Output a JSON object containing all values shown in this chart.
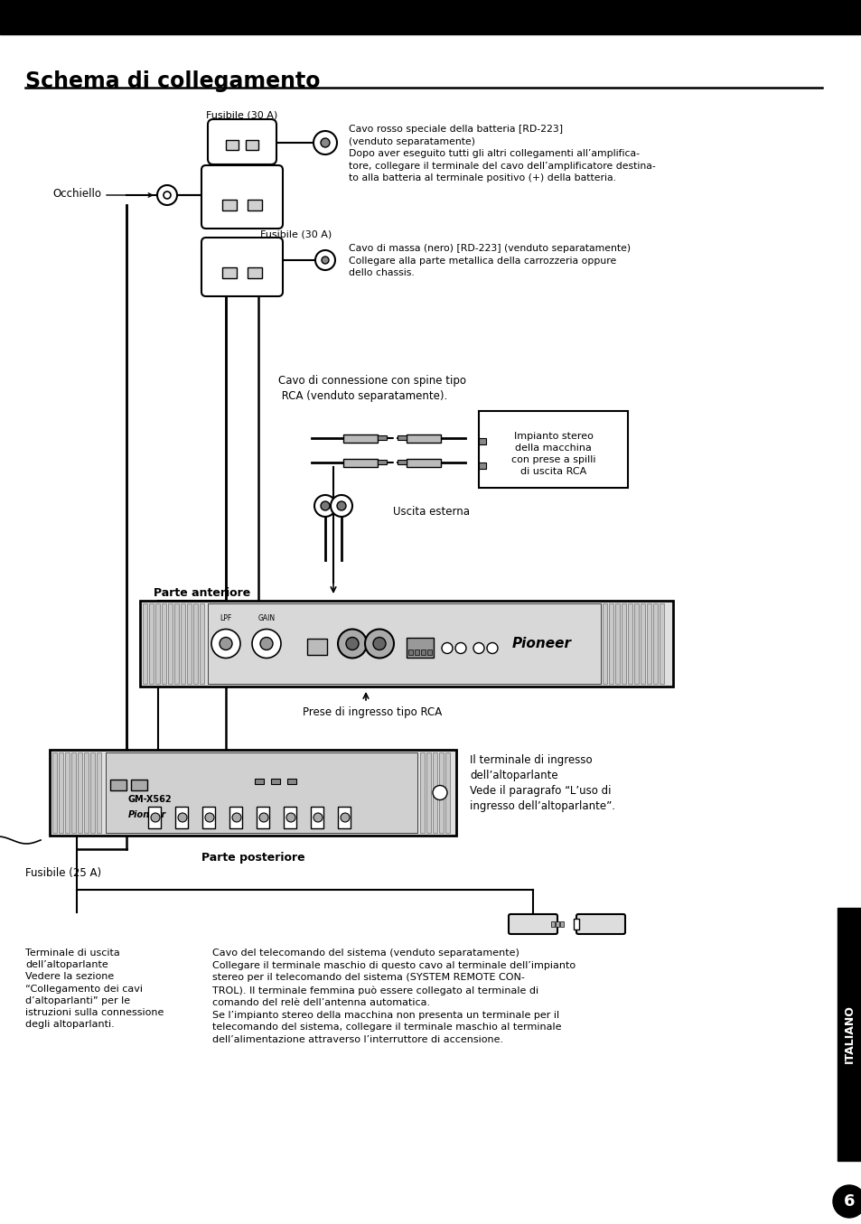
{
  "title": "Schema di collegamento",
  "bg_color": "#ffffff",
  "header_bar_color": "#000000",
  "page_number": "6",
  "sidebar_label": "ITALIANO",
  "annotations": {
    "fusibile_30a_top": "Fusibile (30 A)",
    "occhiello": "Occhiello",
    "fusibile_30a_bottom": "Fusibile (30 A)",
    "cavo_rosso": "Cavo rosso speciale della batteria [RD-223]\n(venduto separatamente)\nDopo aver eseguito tutti gli altri collegamenti all’amplifica-\ntore, collegare il terminale del cavo dell’amplificatore destina-\nto alla batteria al terminale positivo (+) della batteria.",
    "cavo_massa": "Cavo di massa (nero) [RD-223] (venduto separatamente)\nCollegare alla parte metallica della carrozzeria oppure\ndello chassis.",
    "cavo_rca": "Cavo di connessione con spine tipo\n RCA (venduto separatamente).",
    "impianto_stereo": "Impianto stereo\ndella macchina\ncon prese a spilli\ndi uscita RCA",
    "uscita_esterna": "Uscita esterna",
    "parte_anteriore": "Parte anteriore",
    "prese_rca": "Prese di ingresso tipo RCA",
    "terminale_ingresso": "Il terminale di ingresso\ndell’altoparlante\nVede il paragrafo “L’uso di\ningresso dell’altoparlante”.",
    "parte_posteriore": "Parte posteriore",
    "fusibile_25a": "Fusibile (25 A)",
    "terminale_uscita": "Terminale di uscita\ndell’altoparlante\nVedere la sezione\n“Collegamento dei cavi\nd’altoparlanti” per le\nistruzioni sulla connessione\ndegli altoparlanti.",
    "cavo_telecomando": "Cavo del telecomando del sistema (venduto separatamente)\nCollegare il terminale maschio di questo cavo al terminale dell’impianto\nstereo per il telecomando del sistema (SYSTEM REMOTE CON-\nTROL). Il terminale femmina può essere collegato al terminale di\ncomando del relè dell’antenna automatica.\nSe l’impianto stereo della macchina non presenta un terminale per il\ntelecomando del sistema, collegare il terminale maschio al terminale\ndell’alimentazione attraverso l’interruttore di accensione."
  }
}
